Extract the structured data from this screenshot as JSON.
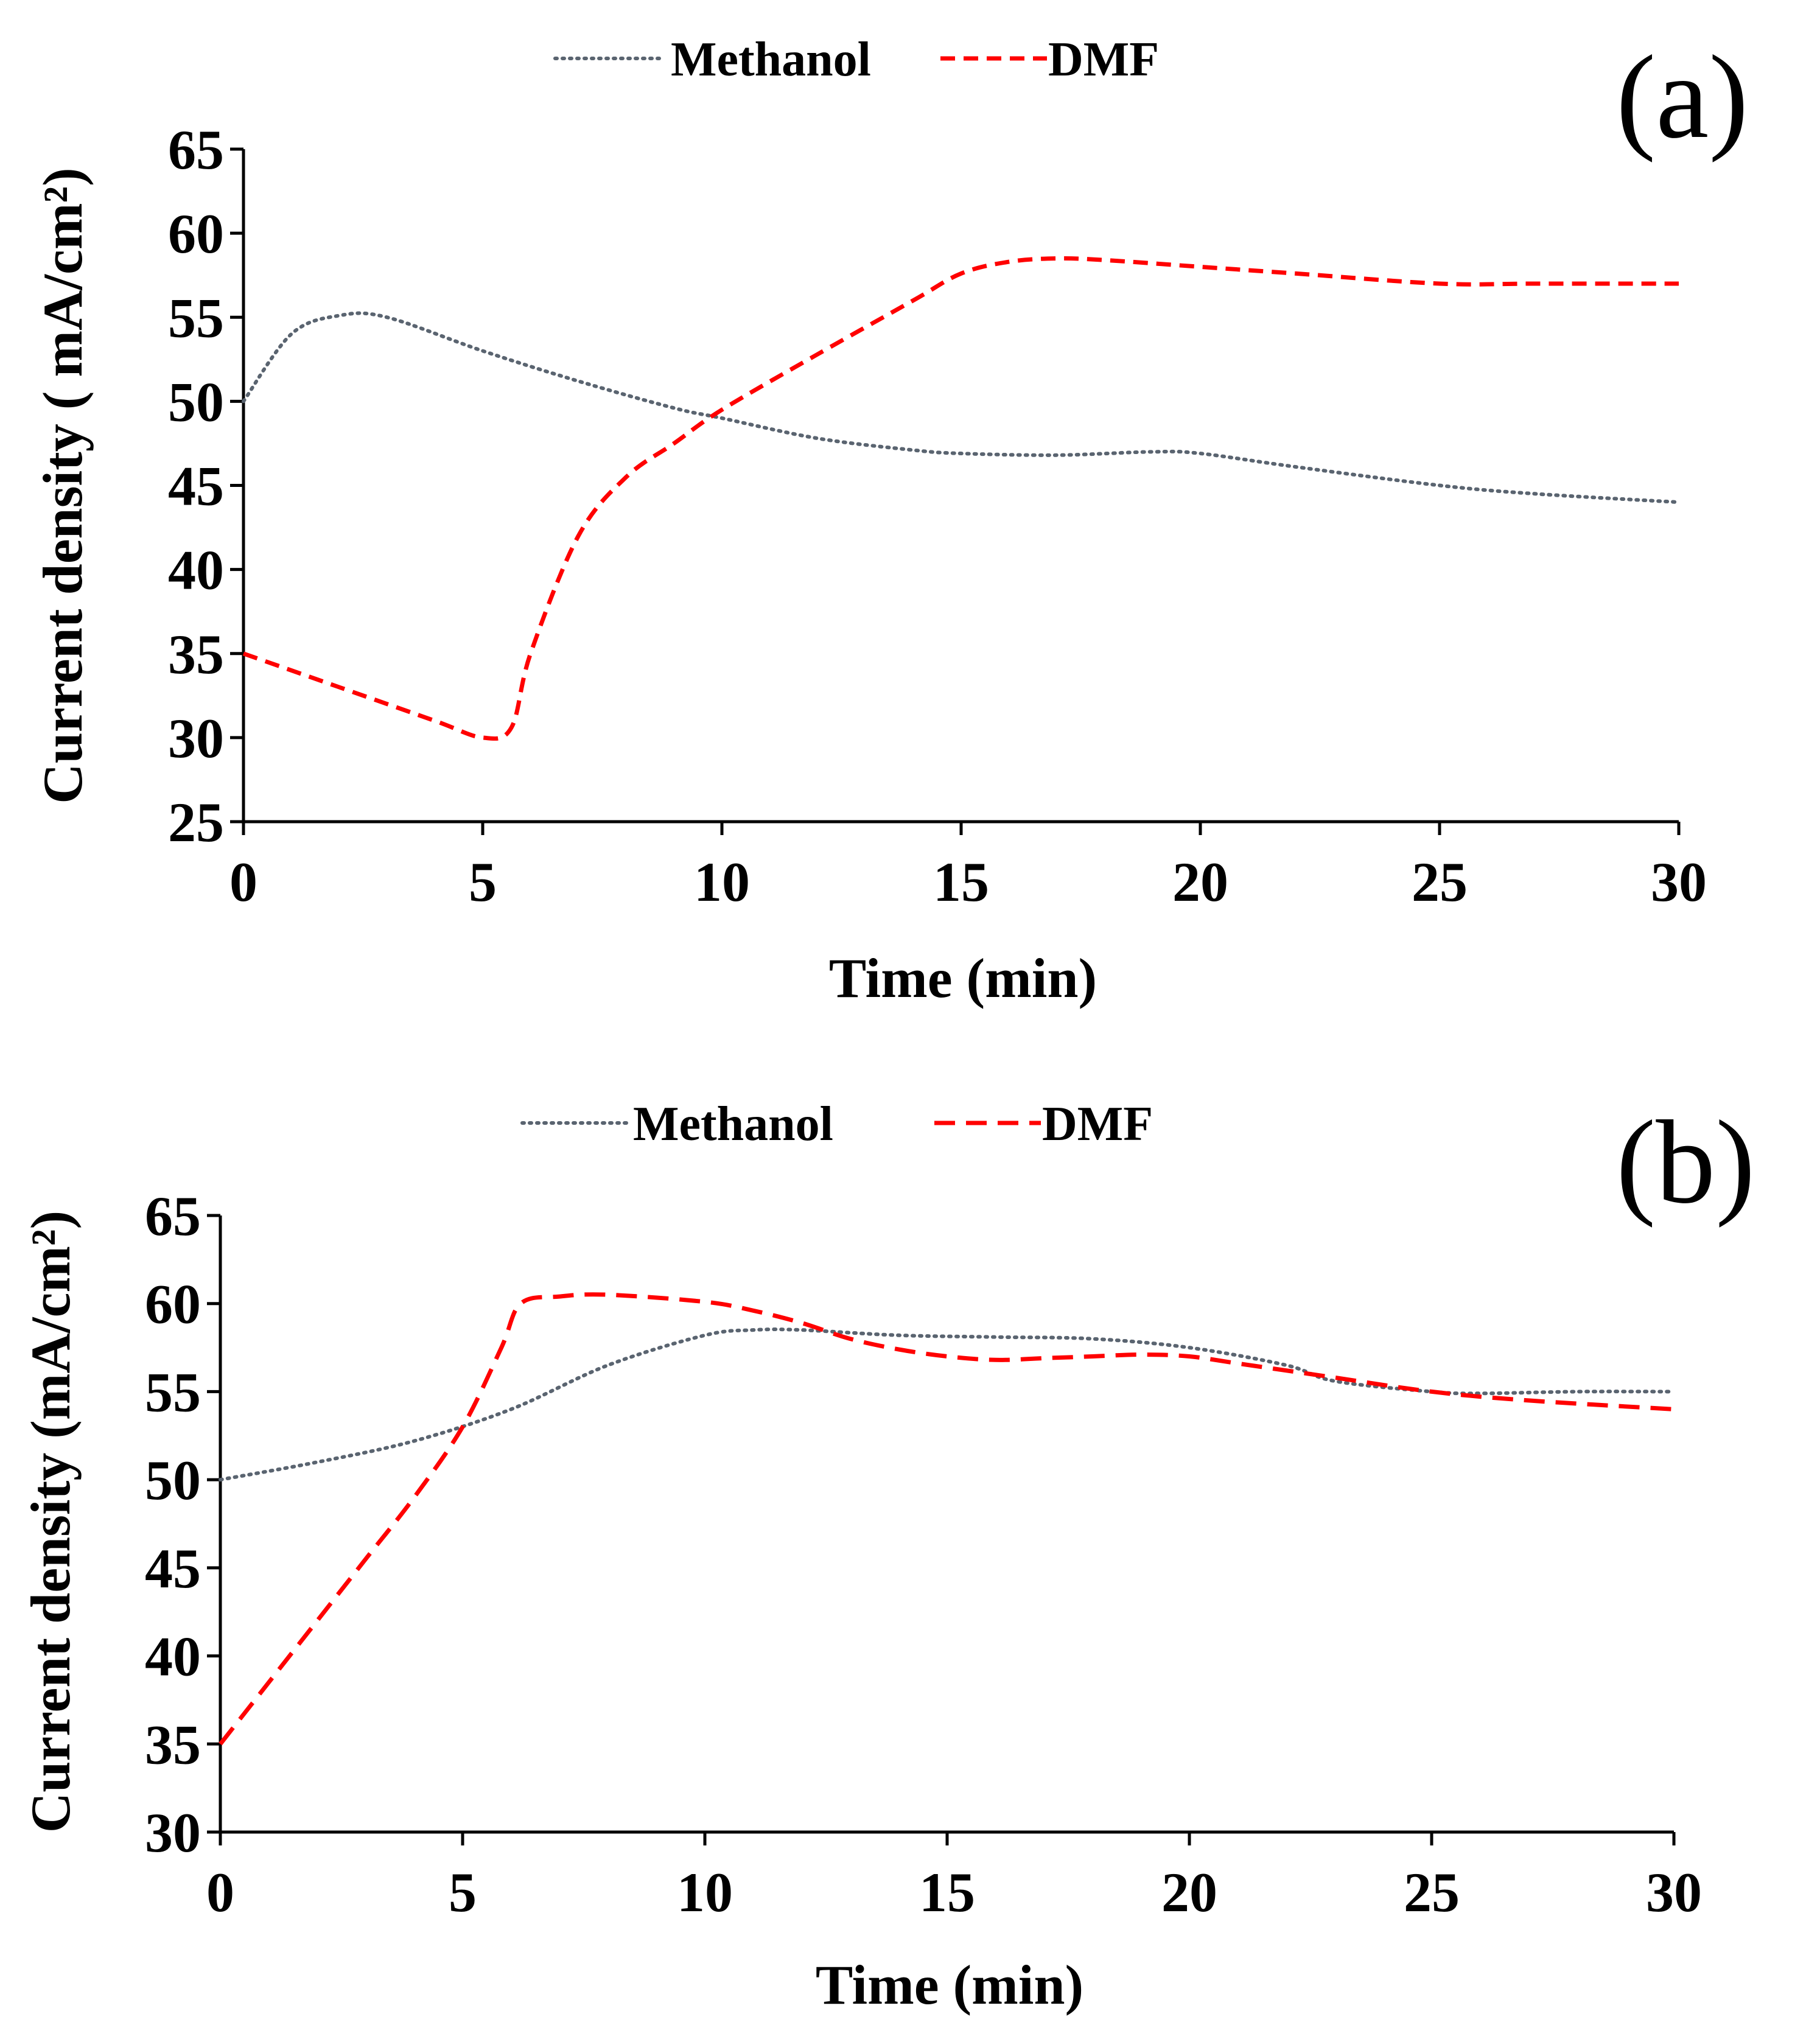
{
  "chart_data": [
    {
      "type": "line",
      "panel_label": "(a)",
      "title": "",
      "xlabel": "Time (min)",
      "ylabel": "Current density ( mA/cm²)",
      "xlim": [
        0,
        30
      ],
      "ylim": [
        25,
        65
      ],
      "xticks": [
        "0",
        "5",
        "10",
        "15",
        "20",
        "25",
        "30"
      ],
      "yticks": [
        "25",
        "30",
        "35",
        "40",
        "45",
        "50",
        "55",
        "60",
        "65"
      ],
      "legend_position": "top",
      "series": [
        {
          "name": "Methanol",
          "color": "#5a6470",
          "style": "dotted",
          "x": [
            0,
            1,
            2,
            3,
            5,
            7,
            9,
            10,
            12,
            14,
            15,
            17,
            19,
            20,
            22,
            25,
            27,
            30
          ],
          "y": [
            50,
            54,
            55.1,
            55,
            53,
            51.2,
            49.6,
            49,
            47.8,
            47.1,
            46.9,
            46.8,
            47,
            46.9,
            46.1,
            45,
            44.5,
            44
          ]
        },
        {
          "name": "DMF",
          "color": "#ff0000",
          "style": "dashed",
          "x": [
            0,
            2,
            4,
            5,
            5.6,
            6,
            7,
            8,
            9,
            10,
            12,
            14,
            15,
            16,
            17,
            18,
            20,
            22,
            25,
            27,
            30
          ],
          "y": [
            35,
            33,
            31,
            30,
            30.6,
            35,
            42,
            45.5,
            47.5,
            49.5,
            52.8,
            56,
            57.6,
            58.3,
            58.5,
            58.4,
            58,
            57.6,
            57,
            57,
            57
          ]
        }
      ]
    },
    {
      "type": "line",
      "panel_label": "(b)",
      "title": "",
      "xlabel": "Time  (min)",
      "ylabel": "Current  density  (mA/cm²)",
      "xlim": [
        0,
        30
      ],
      "ylim": [
        30,
        65
      ],
      "xticks": [
        "0",
        "5",
        "10",
        "15",
        "20",
        "25",
        "30"
      ],
      "yticks": [
        "30",
        "35",
        "40",
        "45",
        "50",
        "55",
        "60",
        "65"
      ],
      "legend_position": "top",
      "series": [
        {
          "name": "Methanol",
          "color": "#5a6470",
          "style": "dotted",
          "x": [
            0,
            2,
            4,
            6,
            8,
            10,
            11,
            12,
            14,
            16,
            18,
            20,
            22,
            23,
            25,
            26,
            28,
            30
          ],
          "y": [
            50,
            51,
            52.2,
            54,
            56.5,
            58.2,
            58.5,
            58.5,
            58.2,
            58.1,
            58,
            57.5,
            56.5,
            55.6,
            55,
            54.9,
            55,
            55
          ]
        },
        {
          "name": "DMF",
          "color": "#ff0000",
          "style": "dashed",
          "x": [
            0,
            1,
            2,
            3,
            4,
            5,
            5.8,
            6.2,
            7,
            8,
            10,
            11,
            12,
            13,
            14,
            15,
            16,
            17,
            18,
            19,
            20,
            21,
            23,
            25,
            27,
            30
          ],
          "y": [
            35,
            38.5,
            42,
            45.5,
            49,
            53,
            57.5,
            60,
            60.4,
            60.5,
            60.1,
            59.6,
            58.9,
            58,
            57.4,
            57,
            56.8,
            56.9,
            57,
            57.1,
            57,
            56.6,
            55.8,
            55,
            54.5,
            54
          ]
        }
      ]
    }
  ]
}
